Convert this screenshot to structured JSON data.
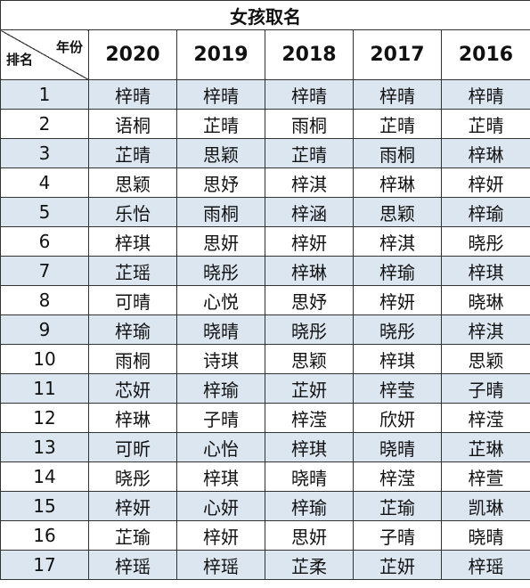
{
  "title": "女孩取名",
  "header": {
    "corner_year": "年份",
    "corner_rank": "排名",
    "years": [
      "2020",
      "2019",
      "2018",
      "2017",
      "2016"
    ]
  },
  "rows": [
    {
      "rank": "1",
      "names": [
        "梓晴",
        "梓晴",
        "梓晴",
        "梓晴",
        "梓晴"
      ]
    },
    {
      "rank": "2",
      "names": [
        "语桐",
        "芷晴",
        "雨桐",
        "芷晴",
        "芷晴"
      ]
    },
    {
      "rank": "3",
      "names": [
        "芷晴",
        "思颖",
        "芷晴",
        "雨桐",
        "梓琳"
      ]
    },
    {
      "rank": "4",
      "names": [
        "思颖",
        "思妤",
        "梓淇",
        "梓琳",
        "梓妍"
      ]
    },
    {
      "rank": "5",
      "names": [
        "乐怡",
        "雨桐",
        "梓涵",
        "思颖",
        "梓瑜"
      ]
    },
    {
      "rank": "6",
      "names": [
        "梓琪",
        "思妍",
        "梓妍",
        "梓淇",
        "晓彤"
      ]
    },
    {
      "rank": "7",
      "names": [
        "芷瑶",
        "晓彤",
        "梓琳",
        "梓瑜",
        "梓琪"
      ]
    },
    {
      "rank": "8",
      "names": [
        "可晴",
        "心悦",
        "思妤",
        "梓妍",
        "晓琳"
      ]
    },
    {
      "rank": "9",
      "names": [
        "梓瑜",
        "晓晴",
        "晓彤",
        "晓彤",
        "梓淇"
      ]
    },
    {
      "rank": "10",
      "names": [
        "雨桐",
        "诗琪",
        "思颖",
        "梓琪",
        "思颖"
      ]
    },
    {
      "rank": "11",
      "names": [
        "芯妍",
        "梓瑜",
        "芷妍",
        "梓莹",
        "子晴"
      ]
    },
    {
      "rank": "12",
      "names": [
        "梓琳",
        "子晴",
        "梓滢",
        "欣妍",
        "梓滢"
      ]
    },
    {
      "rank": "13",
      "names": [
        "可昕",
        "心怡",
        "梓琪",
        "晓晴",
        "芷琳"
      ]
    },
    {
      "rank": "14",
      "names": [
        "晓彤",
        "梓琪",
        "晓晴",
        "梓滢",
        "梓萱"
      ]
    },
    {
      "rank": "15",
      "names": [
        "梓妍",
        "心妍",
        "梓瑜",
        "芷瑜",
        "凯琳"
      ]
    },
    {
      "rank": "16",
      "names": [
        "芷瑜",
        "梓妍",
        "思妍",
        "子晴",
        "晓晴"
      ]
    },
    {
      "rank": "17",
      "names": [
        "梓瑶",
        "梓瑶",
        "芷柔",
        "芷妍",
        "梓瑶"
      ]
    }
  ]
}
